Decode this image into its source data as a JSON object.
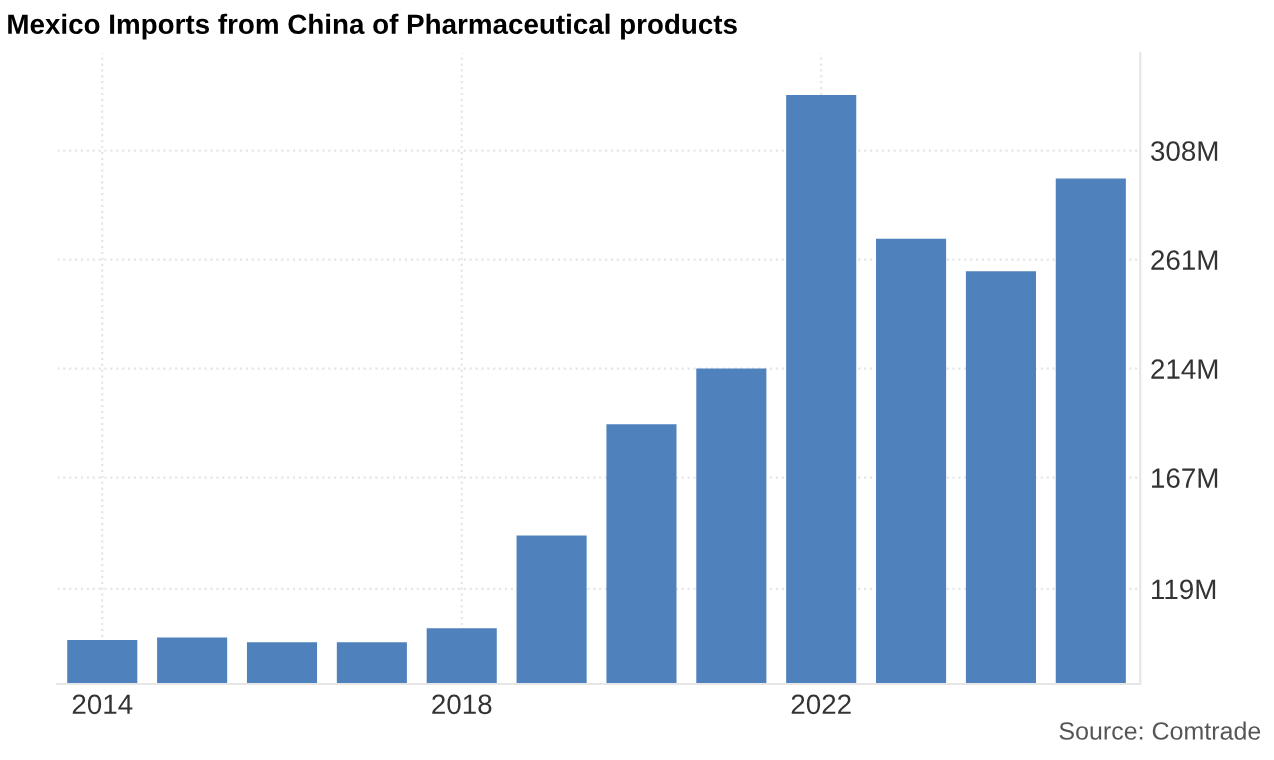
{
  "chart_data": {
    "type": "bar",
    "title": "Mexico Imports from China of Pharmaceutical products",
    "x": [
      2014,
      2015,
      2016,
      2017,
      2018,
      2019,
      2020,
      2021,
      2022,
      2023,
      2024,
      2025
    ],
    "values": [
      97,
      98,
      96,
      96,
      102,
      142,
      190,
      214,
      332,
      270,
      256,
      296
    ],
    "color": "#4f81bd",
    "xlim": [
      2013.5,
      2025.55
    ],
    "xticks": [
      2014,
      2018,
      2022
    ],
    "ylim": [
      78,
      350
    ],
    "yticks": [
      {
        "value": 119,
        "label": "119M"
      },
      {
        "value": 167,
        "label": "167M"
      },
      {
        "value": 214,
        "label": "214M"
      },
      {
        "value": 261,
        "label": "261M"
      },
      {
        "value": 308,
        "label": "308M"
      }
    ],
    "grid": true,
    "annotations": [
      "Source: Comtrade"
    ]
  }
}
